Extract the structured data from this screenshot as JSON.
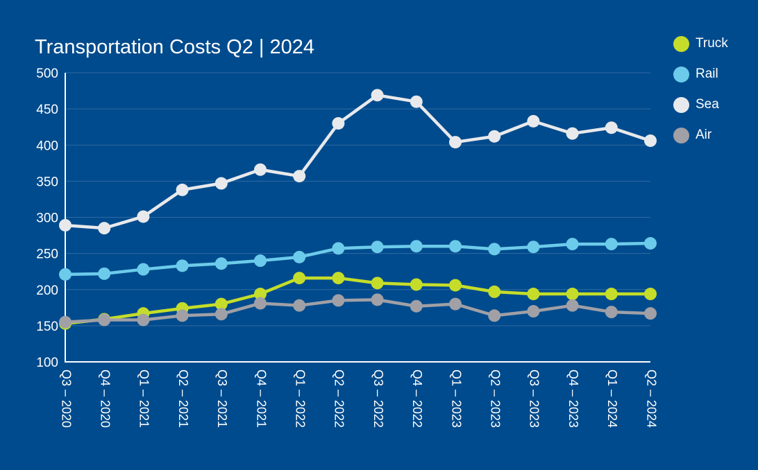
{
  "chart_data": {
    "type": "line",
    "title": "Transportation Costs Q2 | 2024",
    "xlabel": "",
    "ylabel": "",
    "ylim": [
      100,
      500
    ],
    "yticks": [
      100,
      150,
      200,
      250,
      300,
      350,
      400,
      450,
      500
    ],
    "grid": true,
    "legend_position": "top-right",
    "categories": [
      "Q3 – 2020",
      "Q4 – 2020",
      "Q1 – 2021",
      "Q2 – 2021",
      "Q3 – 2021",
      "Q4 – 2021",
      "Q1 – 2022",
      "Q2 – 2022",
      "Q3 – 2022",
      "Q4 – 2022",
      "Q1 – 2023",
      "Q2 – 2023",
      "Q3 – 2023",
      "Q4 – 2023",
      "Q1 – 2024",
      "Q2 – 2024"
    ],
    "series": [
      {
        "name": "Truck",
        "color": "#c5dd2a",
        "values": [
          153,
          159,
          167,
          174,
          180,
          194,
          216,
          216,
          209,
          207,
          206,
          197,
          194,
          194,
          194,
          194
        ]
      },
      {
        "name": "Rail",
        "color": "#6ccbea",
        "values": [
          221,
          222,
          228,
          233,
          236,
          240,
          245,
          257,
          259,
          260,
          260,
          256,
          259,
          263,
          263,
          264
        ]
      },
      {
        "name": "Sea",
        "color": "#e8e9ec",
        "values": [
          289,
          285,
          301,
          338,
          347,
          366,
          357,
          430,
          469,
          460,
          404,
          412,
          433,
          416,
          424,
          406
        ]
      },
      {
        "name": "Air",
        "color": "#a0a0a6",
        "values": [
          155,
          158,
          158,
          164,
          166,
          181,
          178,
          185,
          186,
          177,
          180,
          164,
          170,
          178,
          169,
          167
        ]
      }
    ]
  }
}
